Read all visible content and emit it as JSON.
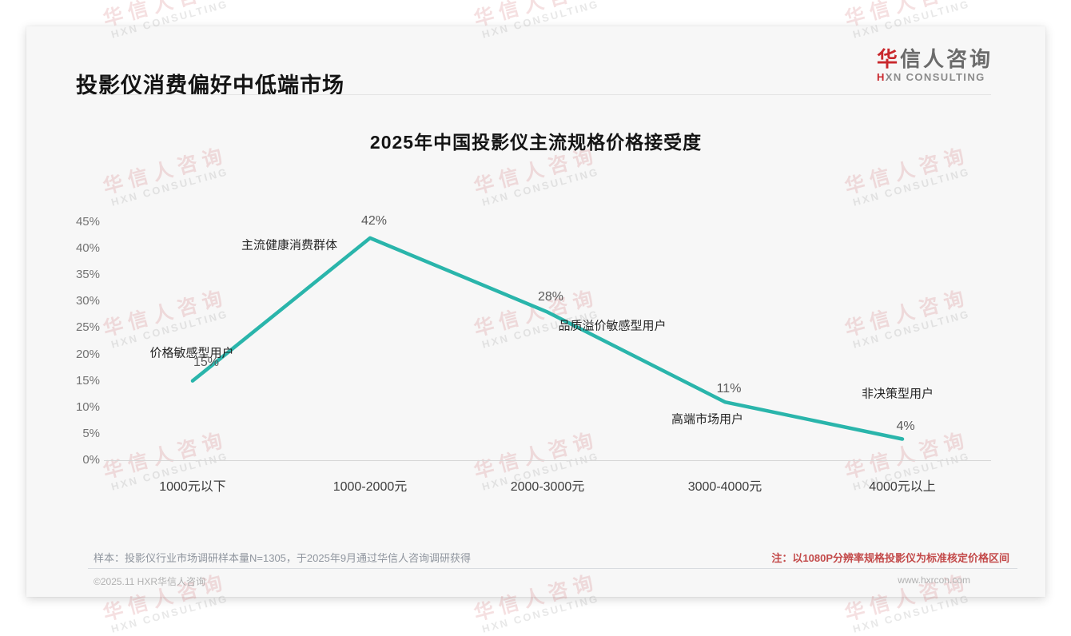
{
  "header": {
    "title": "投影仪消费偏好中低端市场"
  },
  "logo": {
    "cn_first": "华",
    "cn_rest": "信人咨询",
    "en_first": "H",
    "en_rest": "XN CONSULTING"
  },
  "watermark": {
    "line1": "华信人咨询",
    "line2": "HXN CONSULTING"
  },
  "chart_data": {
    "type": "line",
    "title": "2025年中国投影仪主流规格价格接受度",
    "categories": [
      "1000元以下",
      "1000-2000元",
      "2000-3000元",
      "3000-4000元",
      "4000元以上"
    ],
    "values": [
      15,
      42,
      28,
      11,
      4
    ],
    "value_labels": [
      "15%",
      "42%",
      "28%",
      "11%",
      "4%"
    ],
    "annotations": [
      "价格敏感型用户",
      "主流健康消费群体",
      "品质溢价敏感型用户",
      "高端市场用户",
      "非决策型用户"
    ],
    "xlabel": "",
    "ylabel": "",
    "ylim": [
      0,
      45
    ],
    "ytick_step": 5,
    "ytick_suffix": "%",
    "grid": false,
    "legend": "none",
    "line_color": "#2ab5ab"
  },
  "footer": {
    "sample_note": "样本：投影仪行业市场调研样本量N=1305，于2025年9月通过华信人咨询调研获得",
    "price_note": "注：以1080P分辨率规格投影仪为标准核定价格区间",
    "copyright": "©2025.11 HXR华信人咨询",
    "website": "www.hxrcon.com"
  },
  "colors": {
    "accent_line": "#2ab5ab",
    "brand_red": "#c9282d",
    "note_red": "#c34a4a",
    "card_bg": "#f7f7f7"
  }
}
